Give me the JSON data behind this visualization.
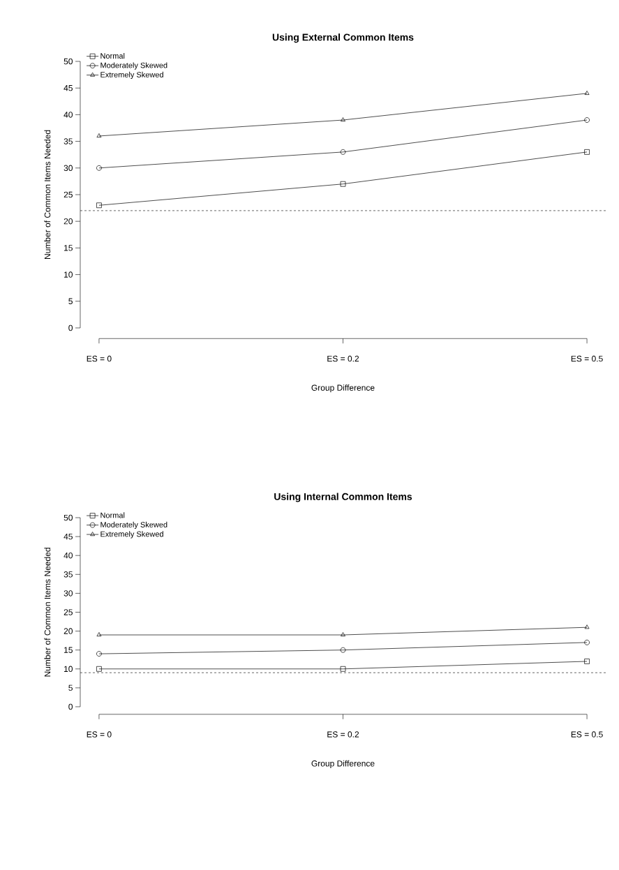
{
  "chart_data": [
    {
      "type": "line",
      "title": "Using External Common Items",
      "xlabel": "Group Difference",
      "ylabel": "Number of Common Items Needed",
      "categories": [
        "ES = 0",
        "ES = 0.2",
        "ES = 0.5"
      ],
      "series": [
        {
          "name": "Normal",
          "color": "#000000",
          "marker": "square",
          "values": [
            23,
            27,
            33
          ]
        },
        {
          "name": "Moderately Skewed",
          "color": "#000000",
          "marker": "circle",
          "values": [
            30,
            33,
            39
          ]
        },
        {
          "name": "Extremely Skewed",
          "color": "#000000",
          "marker": "triangle",
          "values": [
            36,
            39,
            44
          ]
        }
      ],
      "ylim": [
        0,
        50
      ],
      "yticks": [
        0,
        5,
        10,
        15,
        20,
        25,
        30,
        35,
        40,
        45,
        50
      ],
      "legend": "top left",
      "line_style": "solid",
      "ref_lines": [
        {
          "axis": "y",
          "value": 22,
          "color": "#000000",
          "line_style": "dashed"
        }
      ]
    },
    {
      "type": "line",
      "title": "Using Internal Common Items",
      "xlabel": "Group Difference",
      "ylabel": "Number of Common Items Needed",
      "categories": [
        "ES = 0",
        "ES = 0.2",
        "ES = 0.5"
      ],
      "series": [
        {
          "name": "Normal",
          "color": "#000000",
          "marker": "square",
          "values": [
            10,
            10,
            12
          ]
        },
        {
          "name": "Moderately Skewed",
          "color": "#000000",
          "marker": "circle",
          "values": [
            14,
            15,
            17
          ]
        },
        {
          "name": "Extremely Skewed",
          "color": "#000000",
          "marker": "triangle",
          "values": [
            19,
            19,
            21
          ]
        }
      ],
      "ylim": [
        0,
        50
      ],
      "yticks": [
        0,
        5,
        10,
        15,
        20,
        25,
        30,
        35,
        40,
        45,
        50
      ],
      "legend": "top left",
      "line_style": "solid",
      "ref_lines": [
        {
          "axis": "y",
          "value": 9,
          "color": "#000000",
          "line_style": "dashed"
        }
      ]
    }
  ]
}
